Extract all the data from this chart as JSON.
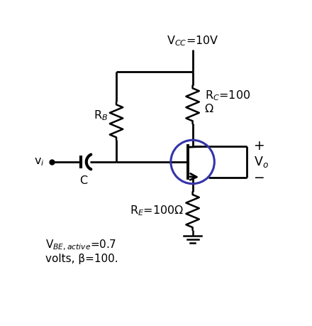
{
  "bg_color": "#ffffff",
  "line_color": "#000000",
  "transistor_circle_color": "#3333aa",
  "fig_width": 4.4,
  "fig_height": 4.59,
  "dpi": 100,
  "labels": {
    "vcc": "V$_{CC}$=10V",
    "rb": "R$_{B}$",
    "rc": "R$_{C}$=100\nΩ",
    "re": "R$_{E}$=100Ω",
    "vi": "v$_{i}$",
    "cap": "C",
    "vo": "V$_{o}$",
    "plus": "+",
    "minus": "−",
    "vbe": "V$_{BE,active}$=0.7\nvolts, β=100."
  }
}
